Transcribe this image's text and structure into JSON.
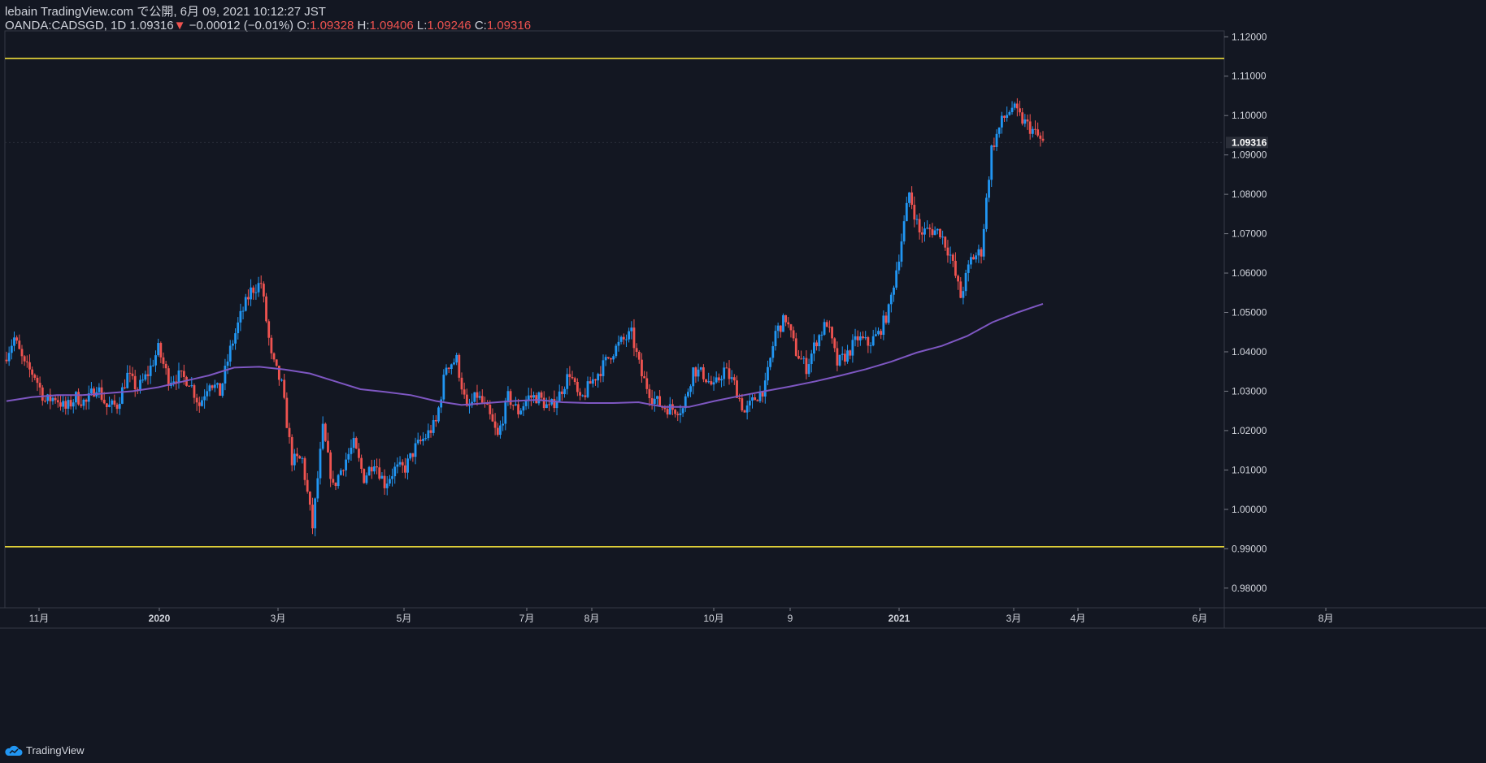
{
  "header": {
    "publisher": "lebain TradingView.com で公開, 6月 09, 2021 10:12:27 JST",
    "symbol_line": "OANDA:CADSGD, 1D 1.09316",
    "change": "−0.00012 (−0.01%)",
    "o_label": "O:",
    "o_value": "1.09328",
    "h_label": "H:",
    "h_value": "1.09406",
    "l_label": "L:",
    "l_value": "1.09246",
    "c_label": "C:",
    "c_value": "1.09316"
  },
  "footer": {
    "brand": "TradingView"
  },
  "colors": {
    "background": "#131722",
    "up": "#2196f3",
    "down": "#ef5350",
    "ma": "#7e57c2",
    "level": "#ffeb3b",
    "axis_text": "#d1d4dc"
  },
  "chart_data": {
    "type": "candlestick",
    "y_ticks": [
      "1.12000",
      "1.11000",
      "1.10000",
      "1.09000",
      "1.08000",
      "1.07000",
      "1.06000",
      "1.05000",
      "1.04000",
      "1.03000",
      "1.02000",
      "1.01000",
      "1.00000",
      "0.99000",
      "0.98000"
    ],
    "ylim": [
      0.975,
      1.1215
    ],
    "x_ticks": [
      "11月",
      "2020",
      "3月",
      "5月",
      "7月",
      "8月",
      "10月",
      "9",
      "2021",
      "3月",
      "4月",
      "6月",
      "8月"
    ],
    "last_price_label": "1.09316",
    "last_price": 1.09316,
    "levels": [
      1.1145,
      0.9905
    ],
    "path": [
      1.038,
      1.0435,
      1.0365,
      1.034,
      1.0275,
      1.0285,
      1.0255,
      1.0285,
      1.027,
      1.0315,
      1.026,
      1.0265,
      1.034,
      1.0305,
      1.0345,
      1.0407,
      1.033,
      1.0338,
      1.0327,
      1.0265,
      1.0328,
      1.0295,
      1.0405,
      1.049,
      1.0555,
      1.0575,
      1.0385,
      1.0315,
      1.0125,
      1.0126,
      0.9955,
      1.0203,
      1.0055,
      1.0115,
      1.0165,
      1.008,
      1.0125,
      1.0065,
      1.0102,
      1.0105,
      1.0157,
      1.0185,
      1.022,
      1.0365,
      1.038,
      1.025,
      1.029,
      1.025,
      1.0183,
      1.0285,
      1.0248,
      1.0285,
      1.0285,
      1.0255,
      1.0292,
      1.0348,
      1.0272,
      1.032,
      1.0355,
      1.0395,
      1.0425,
      1.0445,
      1.034,
      1.0285,
      1.0261,
      1.0255,
      1.0255,
      1.0355,
      1.0342,
      1.0308,
      1.0355,
      1.0318,
      1.0245,
      1.0282,
      1.0311,
      1.045,
      1.0485,
      1.04,
      1.036,
      1.043,
      1.0475,
      1.037,
      1.0395,
      1.0435,
      1.042,
      1.0445,
      1.0505,
      1.0645,
      1.0804,
      1.0702,
      1.071,
      1.0705,
      1.0645,
      1.054,
      1.0635,
      1.0655,
      1.0915,
      1.0985,
      1.1022,
      1.0988,
      1.0962,
      1.093
    ],
    "ma": [
      1.0275,
      1.0285,
      1.029,
      1.029,
      1.0295,
      1.03,
      1.031,
      1.0325,
      1.034,
      1.036,
      1.0362,
      1.0355,
      1.0345,
      1.0325,
      1.0305,
      1.0298,
      1.029,
      1.0275,
      1.0265,
      1.027,
      1.0275,
      1.0278,
      1.0272,
      1.027,
      1.027,
      1.0272,
      1.026,
      1.026,
      1.0275,
      1.0288,
      1.03,
      1.0312,
      1.0325,
      1.034,
      1.0356,
      1.0375,
      1.0398,
      1.0415,
      1.044,
      1.0475,
      1.05,
      1.0522
    ]
  }
}
